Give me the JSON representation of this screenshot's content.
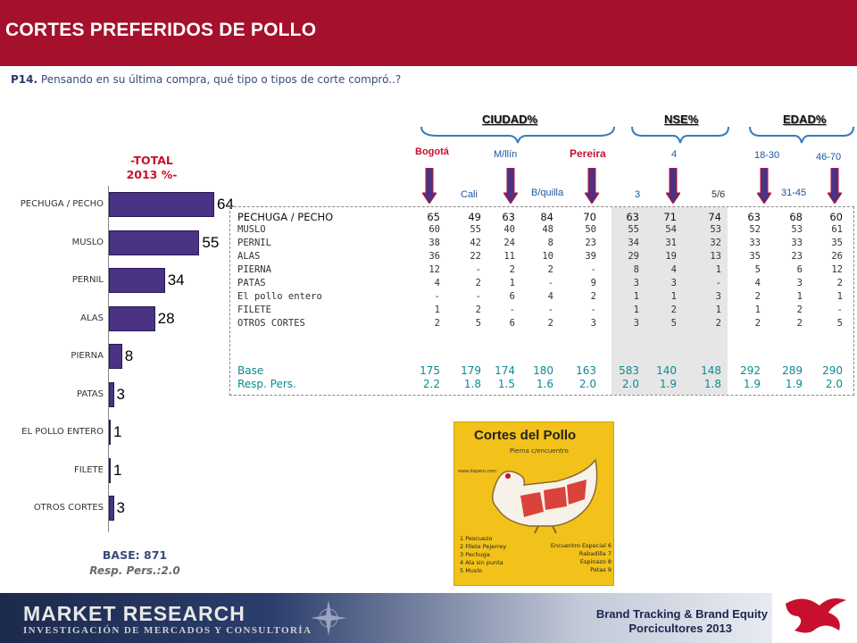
{
  "header": {
    "title": "CORTES PREFERIDOS DE POLLO"
  },
  "question": {
    "number": "P14.",
    "text": "Pensando en su última compra, qué tipo o tipos de corte compró..?"
  },
  "total": {
    "heading_line1": "-TOTAL",
    "heading_line2": "2013 %-",
    "base_label": "BASE:  871",
    "resp_label": "Resp. Pers.:2.0"
  },
  "chart_data": {
    "type": "bar",
    "orientation": "horizontal",
    "title": "-TOTAL 2013 %-",
    "categories": [
      "PECHUGA / PECHO",
      "MUSLO",
      "PERNIL",
      "ALAS",
      "PIERNA",
      "PATAS",
      "EL POLLO ENTERO",
      "FILETE",
      "OTROS CORTES"
    ],
    "values": [
      64,
      55,
      34,
      28,
      8,
      3,
      1,
      1,
      3
    ],
    "value_labels": [
      "64",
      "55",
      "34",
      "28",
      "8",
      "3",
      "1",
      "1",
      "3"
    ],
    "bar_color": "#4a3285"
  },
  "groups": [
    {
      "title": "CIUDAD%"
    },
    {
      "title": "NSE%"
    },
    {
      "title": "EDAD%"
    }
  ],
  "column_headers": [
    {
      "label": "Bogotá",
      "style": "red"
    },
    {
      "label": "Cali",
      "style": "blue"
    },
    {
      "label": "M/llín",
      "style": "blue"
    },
    {
      "label": "B/quilla",
      "style": "blue"
    },
    {
      "label": "Pereira",
      "style": "red"
    },
    {
      "label": "3",
      "style": "blue"
    },
    {
      "label": "4",
      "style": "blue"
    },
    {
      "label": "5/6",
      "style": "dark"
    },
    {
      "label": "18-30",
      "style": "blue"
    },
    {
      "label": "31-45",
      "style": "blue"
    },
    {
      "label": "46-70",
      "style": "blue"
    }
  ],
  "table": {
    "rows": [
      {
        "label": "PECHUGA / PECHO",
        "values": [
          "65",
          "49",
          "63",
          "84",
          "70",
          "63",
          "71",
          "74",
          "63",
          "68",
          "60"
        ]
      },
      {
        "label": "MUSLO",
        "values": [
          "60",
          "55",
          "40",
          "48",
          "50",
          "55",
          "54",
          "53",
          "52",
          "53",
          "61"
        ]
      },
      {
        "label": "PERNIL",
        "values": [
          "38",
          "42",
          "24",
          "8",
          "23",
          "34",
          "31",
          "32",
          "33",
          "33",
          "35"
        ]
      },
      {
        "label": "ALAS",
        "values": [
          "36",
          "22",
          "11",
          "10",
          "39",
          "29",
          "19",
          "13",
          "35",
          "23",
          "26"
        ]
      },
      {
        "label": "PIERNA",
        "values": [
          "12",
          "-",
          "2",
          "2",
          "-",
          "8",
          "4",
          "1",
          "5",
          "6",
          "12"
        ]
      },
      {
        "label": "PATAS",
        "values": [
          "4",
          "2",
          "1",
          "-",
          "9",
          "3",
          "3",
          "-",
          "4",
          "3",
          "2"
        ]
      },
      {
        "label": "El pollo entero",
        "values": [
          "-",
          "-",
          "6",
          "4",
          "2",
          "1",
          "1",
          "3",
          "2",
          "1",
          "1"
        ]
      },
      {
        "label": "FILETE",
        "values": [
          "1",
          "2",
          "-",
          "-",
          "-",
          "1",
          "2",
          "1",
          "1",
          "2",
          "-"
        ]
      },
      {
        "label": "OTROS CORTES",
        "values": [
          "2",
          "5",
          "6",
          "2",
          "3",
          "3",
          "5",
          "2",
          "2",
          "2",
          "5"
        ]
      }
    ],
    "base_row": {
      "label": "Base",
      "values": [
        "175",
        "179",
        "174",
        "180",
        "163",
        "583",
        "140",
        "148",
        "292",
        "289",
        "290"
      ]
    },
    "resp_row": {
      "label": "Resp. Pers.",
      "values": [
        "2.2",
        "1.8",
        "1.5",
        "1.6",
        "2.0",
        "2.0",
        "1.9",
        "1.8",
        "1.9",
        "1.9",
        "2.0"
      ]
    }
  },
  "poster": {
    "title": "Cortes del Pollo",
    "subtitle": "Pierna c/encuentro",
    "url": "www.depero.com",
    "legend_left": [
      "1 Pescuezo",
      "2 Filete Pejerrey",
      "3 Pechuga",
      "4 Ala sin punta",
      "5 Muslo"
    ],
    "legend_right": [
      "Encuentro Especial 6",
      "Rabadilla 7",
      "Espinazo 8",
      "Patas 9"
    ]
  },
  "footer": {
    "company": "MARKET RESEARCH",
    "tagline": "INVESTIGACIÓN DE MERCADOS Y CONSULTORÍA",
    "brand_line1": "Brand Tracking & Brand Equity",
    "brand_line2": "Porcicultores 2013"
  },
  "colors": {
    "header_red": "#a5102c",
    "bar_purple": "#4a3285",
    "base_teal": "#0c8a92",
    "arrow_purple": "#4a3285",
    "poster_yellow": "#f2c21a"
  }
}
